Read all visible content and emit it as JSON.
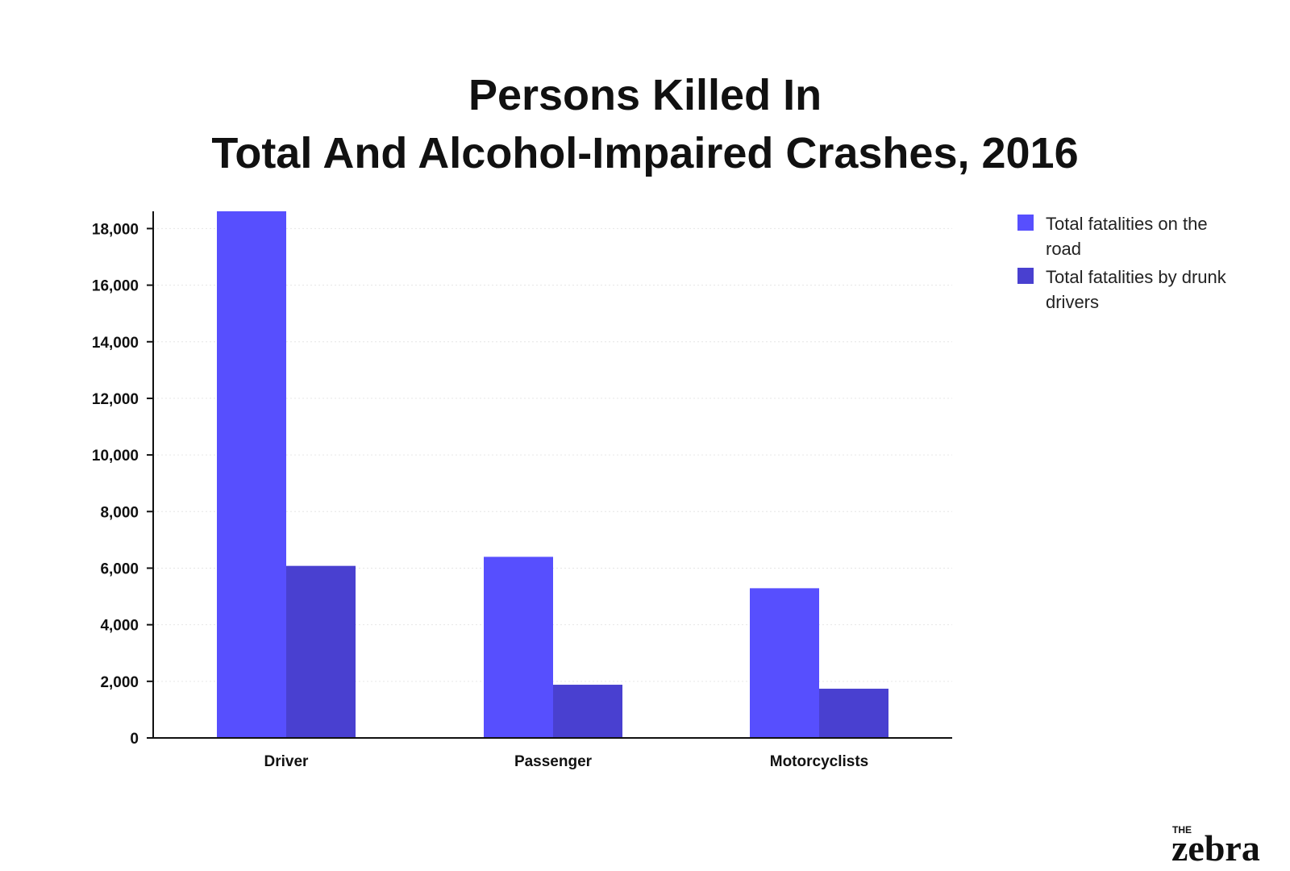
{
  "title_lines": [
    "Persons Killed In",
    "Total And Alcohol-Impaired Crashes, 2016"
  ],
  "colors": {
    "series1": "#574ffe",
    "series2": "#4940d0",
    "axis": "#111111",
    "grid": "#e6e6e6"
  },
  "logo": {
    "small": "THE",
    "main": "zebra"
  },
  "chart_data": {
    "type": "bar",
    "title": "Persons Killed In Total And Alcohol-Impaired Crashes, 2016",
    "categories": [
      "Driver",
      "Passenger",
      "Motorcyclists"
    ],
    "series": [
      {
        "name": "Total fatalities on the road",
        "values": [
          18610,
          6400,
          5290
        ]
      },
      {
        "name": "Total fatalities by drunk drivers",
        "values": [
          6080,
          1880,
          1740
        ]
      }
    ],
    "ylim": [
      0,
      18610
    ],
    "yticks": [
      0,
      2000,
      4000,
      6000,
      8000,
      10000,
      12000,
      14000,
      16000,
      18000
    ],
    "ytick_labels": [
      "0",
      "2,000",
      "4,000",
      "6,000",
      "8,000",
      "10,000",
      "12,000",
      "14,000",
      "16,000",
      "18,000"
    ],
    "xlabel": "",
    "ylabel": "",
    "grid": true,
    "legend_position": "right"
  }
}
